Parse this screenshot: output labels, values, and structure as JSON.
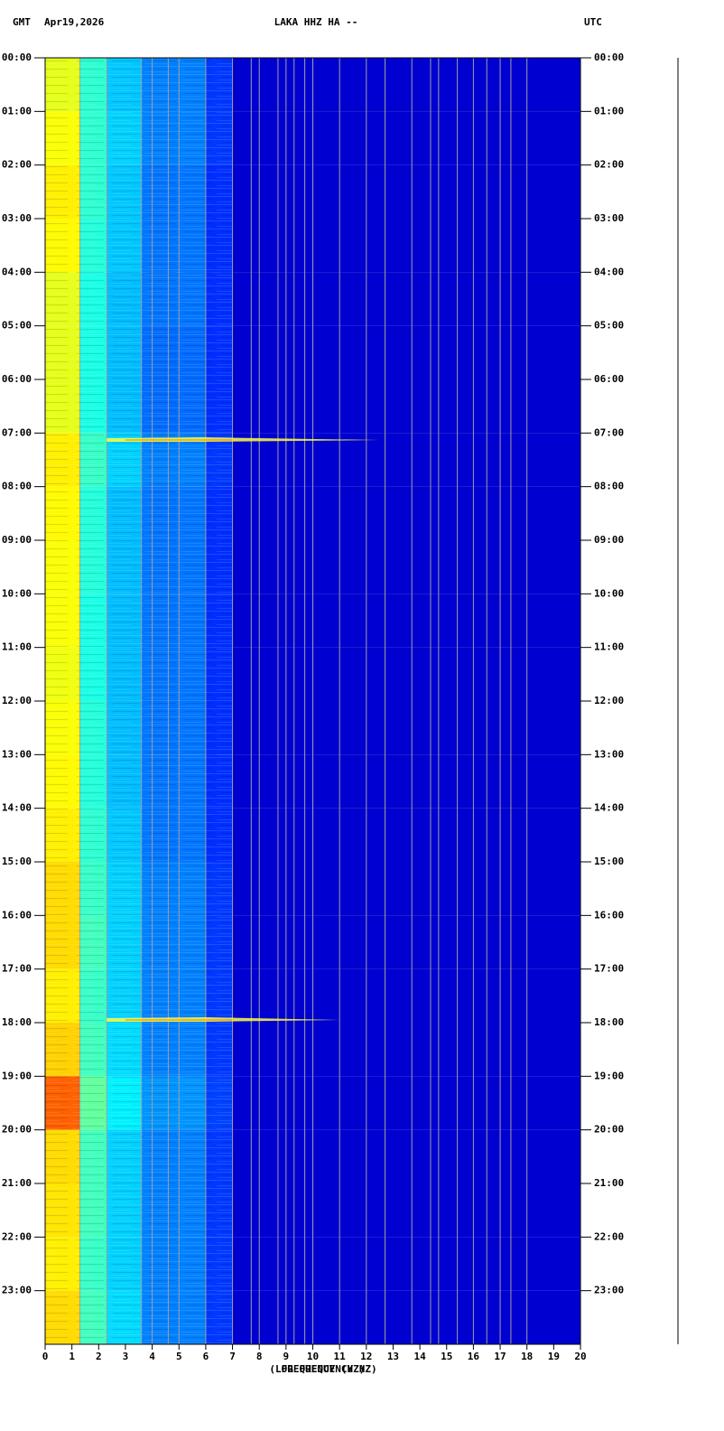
{
  "chart_data": {
    "type": "spectrogram",
    "title_left": "GMT",
    "date": "Apr19,2026",
    "title": "LAKA HHZ HA --",
    "title_right": "UTC",
    "xlabel": "FREQUENCY (HZ)",
    "xlabel2": "(LOG FREQUENCY HZ)",
    "xlim": [
      0,
      20
    ],
    "xticks": [
      0,
      1,
      2,
      3,
      4,
      5,
      6,
      7,
      8,
      9,
      10,
      11,
      12,
      13,
      14,
      15,
      16,
      17,
      18,
      19,
      20
    ],
    "xgrid": [
      1.3,
      2.3,
      3.6,
      4,
      4.6,
      5,
      6,
      7,
      7.7,
      8,
      8.7,
      9,
      9.3,
      9.7,
      10,
      11,
      12,
      12.7,
      13.7,
      14.4,
      14.7,
      15.4,
      16,
      16.5,
      17,
      17.4,
      18
    ],
    "ylim": [
      0,
      24
    ],
    "yticks": [
      {
        "value": 0,
        "label": "00:00"
      },
      {
        "value": 1,
        "label": "01:00"
      },
      {
        "value": 2,
        "label": "02:00"
      },
      {
        "value": 3,
        "label": "03:00"
      },
      {
        "value": 4,
        "label": "04:00"
      },
      {
        "value": 5,
        "label": "05:00"
      },
      {
        "value": 6,
        "label": "06:00"
      },
      {
        "value": 7,
        "label": "07:00"
      },
      {
        "value": 8,
        "label": "08:00"
      },
      {
        "value": 9,
        "label": "09:00"
      },
      {
        "value": 10,
        "label": "10:00"
      },
      {
        "value": 11,
        "label": "11:00"
      },
      {
        "value": 12,
        "label": "12:00"
      },
      {
        "value": 13,
        "label": "13:00"
      },
      {
        "value": 14,
        "label": "14:00"
      },
      {
        "value": 15,
        "label": "15:00"
      },
      {
        "value": 16,
        "label": "16:00"
      },
      {
        "value": 17,
        "label": "17:00"
      },
      {
        "value": 18,
        "label": "18:00"
      },
      {
        "value": 19,
        "label": "19:00"
      },
      {
        "value": 20,
        "label": "20:00"
      },
      {
        "value": 21,
        "label": "21:00"
      },
      {
        "value": 22,
        "label": "22:00"
      },
      {
        "value": 23,
        "label": "23:00"
      }
    ],
    "bands": [
      0,
      1.3,
      2.3,
      3.6,
      6,
      7,
      20
    ],
    "levels": [
      [
        0.6,
        0.42,
        0.32,
        0.25,
        0.18,
        0.08
      ],
      [
        0.62,
        0.42,
        0.33,
        0.25,
        0.18,
        0.08
      ],
      [
        0.64,
        0.42,
        0.32,
        0.24,
        0.17,
        0.08
      ],
      [
        0.63,
        0.41,
        0.32,
        0.24,
        0.17,
        0.08
      ],
      [
        0.6,
        0.4,
        0.31,
        0.24,
        0.17,
        0.08
      ],
      [
        0.6,
        0.4,
        0.31,
        0.23,
        0.17,
        0.08
      ],
      [
        0.6,
        0.4,
        0.31,
        0.23,
        0.17,
        0.08
      ],
      [
        0.64,
        0.43,
        0.33,
        0.25,
        0.18,
        0.08
      ],
      [
        0.63,
        0.41,
        0.31,
        0.24,
        0.17,
        0.08
      ],
      [
        0.62,
        0.41,
        0.31,
        0.24,
        0.17,
        0.08
      ],
      [
        0.62,
        0.4,
        0.31,
        0.24,
        0.17,
        0.08
      ],
      [
        0.61,
        0.4,
        0.31,
        0.24,
        0.17,
        0.08
      ],
      [
        0.62,
        0.41,
        0.31,
        0.24,
        0.17,
        0.08
      ],
      [
        0.63,
        0.41,
        0.31,
        0.24,
        0.17,
        0.08
      ],
      [
        0.64,
        0.42,
        0.32,
        0.24,
        0.17,
        0.08
      ],
      [
        0.66,
        0.43,
        0.33,
        0.25,
        0.18,
        0.08
      ],
      [
        0.66,
        0.44,
        0.33,
        0.25,
        0.18,
        0.08
      ],
      [
        0.64,
        0.43,
        0.33,
        0.25,
        0.18,
        0.08
      ],
      [
        0.67,
        0.44,
        0.34,
        0.25,
        0.18,
        0.08
      ],
      [
        0.78,
        0.47,
        0.36,
        0.27,
        0.19,
        0.08
      ],
      [
        0.66,
        0.44,
        0.33,
        0.25,
        0.18,
        0.08
      ],
      [
        0.65,
        0.44,
        0.33,
        0.25,
        0.18,
        0.08
      ],
      [
        0.64,
        0.43,
        0.33,
        0.25,
        0.18,
        0.08
      ],
      [
        0.66,
        0.44,
        0.34,
        0.25,
        0.18,
        0.08
      ]
    ],
    "events": [
      {
        "time": 7.13,
        "fmax": 12.5
      },
      {
        "time": 17.95,
        "fmax": 11
      }
    ]
  }
}
